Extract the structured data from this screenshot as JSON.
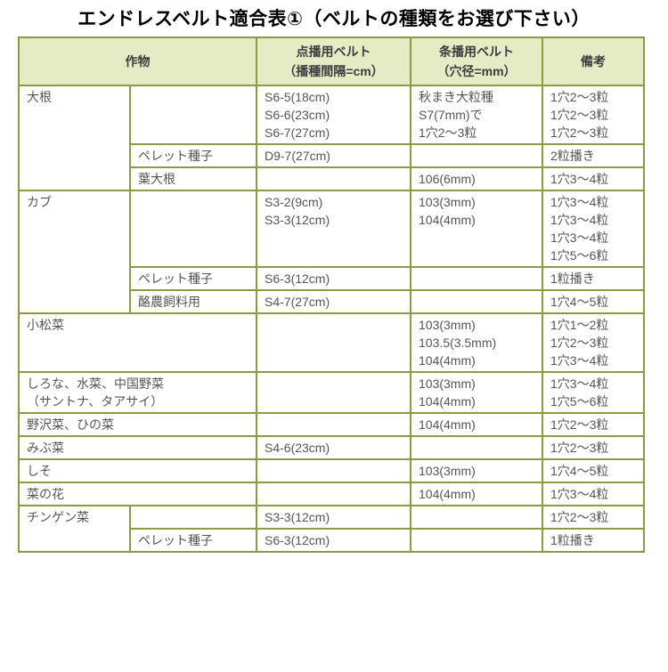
{
  "title": "エンドレスベルト適合表①（ベルトの種類をお選び下さい）",
  "colors": {
    "table_border": "#8a9b44",
    "header_background": "#e4ebc5",
    "body_text": "#555555",
    "title_text": "#000000"
  },
  "headers": {
    "crop": "作物",
    "spot_belt": [
      "点播用ベルト",
      "（播種間隔=cm）"
    ],
    "row_belt": [
      "条播用ベルト",
      "（穴径=mm）"
    ],
    "remarks": "備考"
  },
  "rows": [
    {
      "crop": [
        "大根"
      ],
      "sub": [],
      "spot": [
        "S6-5(18cm)",
        "S6-6(23cm)",
        "S6-7(27cm)"
      ],
      "jo": [
        "秋まき大粒種",
        "S7(7mm)で",
        "1穴2～3粒"
      ],
      "biko": [
        "1穴2～3粒",
        "1穴2～3粒",
        "1穴2～3粒"
      ]
    },
    {
      "sub": [
        "ペレット種子"
      ],
      "spot": [
        "D9-7(27cm)"
      ],
      "jo": [],
      "biko": [
        "2粒播き"
      ]
    },
    {
      "sub": [
        "葉大根"
      ],
      "spot": [],
      "jo": [
        "106(6mm)"
      ],
      "biko": [
        "1穴3～4粒"
      ]
    },
    {
      "crop": [
        "カブ"
      ],
      "sub": [],
      "spot": [
        "S3-2(9cm)",
        "S3-3(12cm)"
      ],
      "jo": [
        "103(3mm)",
        "104(4mm)"
      ],
      "biko": [
        "1穴3～4粒",
        "1穴3～4粒",
        "1穴3～4粒",
        "1穴5～6粒"
      ]
    },
    {
      "sub": [
        "ペレット種子"
      ],
      "spot": [
        "S6-3(12cm)"
      ],
      "jo": [],
      "biko": [
        "1粒播き"
      ]
    },
    {
      "sub": [
        "酪農飼料用"
      ],
      "spot": [
        "S4-7(27cm)"
      ],
      "jo": [],
      "biko": [
        "1穴4～5粒"
      ]
    },
    {
      "crop": [
        "小松菜"
      ],
      "spot": [],
      "jo": [
        "103(3mm)",
        "103.5(3.5mm)",
        "104(4mm)"
      ],
      "biko": [
        "1穴1～2粒",
        "1穴2～3粒",
        "1穴3～4粒"
      ]
    },
    {
      "crop": [
        "しろな、水菜、中国野菜",
        "（サントナ、タアサイ）"
      ],
      "spot": [],
      "jo": [
        "103(3mm)",
        "104(4mm)"
      ],
      "biko": [
        "1穴3～4粒",
        "1穴5～6粒"
      ]
    },
    {
      "crop": [
        "野沢菜、ひの菜"
      ],
      "spot": [],
      "jo": [
        "104(4mm)"
      ],
      "biko": [
        "1穴2～3粒"
      ]
    },
    {
      "crop": [
        "みぶ菜"
      ],
      "spot": [
        "S4-6(23cm)"
      ],
      "jo": [],
      "biko": [
        "1穴2～3粒"
      ]
    },
    {
      "crop": [
        "しそ"
      ],
      "spot": [],
      "jo": [
        "103(3mm)"
      ],
      "biko": [
        "1穴4～5粒"
      ]
    },
    {
      "crop": [
        "菜の花"
      ],
      "spot": [],
      "jo": [
        "104(4mm)"
      ],
      "biko": [
        "1穴3～4粒"
      ]
    },
    {
      "crop": [
        "チンゲン菜"
      ],
      "sub": [],
      "spot": [
        "S3-3(12cm)"
      ],
      "jo": [],
      "biko": [
        "1穴2～3粒"
      ]
    },
    {
      "sub": [
        "ペレット種子"
      ],
      "spot": [
        "S6-3(12cm)"
      ],
      "jo": [],
      "biko": [
        "1粒播き"
      ]
    }
  ]
}
